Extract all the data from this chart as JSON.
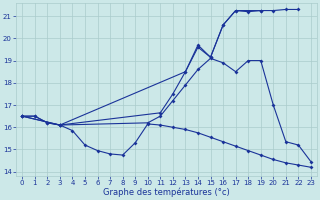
{
  "xlabel": "Graphe des températures (°c)",
  "bg_color": "#cce8e8",
  "grid_color": "#aacccc",
  "line_color": "#1a3399",
  "xlim_min": -0.5,
  "xlim_max": 23.5,
  "ylim_min": 13.8,
  "ylim_max": 21.6,
  "xtick_vals": [
    0,
    1,
    2,
    3,
    4,
    5,
    6,
    7,
    8,
    9,
    10,
    11,
    12,
    13,
    14,
    15,
    16,
    17,
    18,
    19,
    20,
    21,
    22,
    23
  ],
  "ytick_vals": [
    14,
    15,
    16,
    17,
    18,
    19,
    20,
    21
  ],
  "series": [
    {
      "x": [
        0,
        1,
        2,
        3,
        4,
        5,
        6,
        7,
        8,
        9,
        10,
        11,
        12,
        13,
        14,
        15,
        16,
        17,
        18,
        19,
        20,
        21,
        22,
        23
      ],
      "y": [
        16.5,
        16.5,
        16.2,
        16.1,
        15.85,
        15.2,
        14.95,
        14.8,
        14.75,
        15.3,
        16.15,
        16.1,
        16.0,
        15.9,
        15.75,
        15.55,
        15.35,
        15.15,
        14.95,
        14.75,
        14.55,
        14.4,
        14.3,
        14.2
      ]
    },
    {
      "x": [
        0,
        1,
        2,
        3,
        10,
        11,
        12,
        13,
        14,
        15,
        16,
        17,
        18,
        19,
        20,
        21,
        22,
        23
      ],
      "y": [
        16.5,
        16.5,
        16.2,
        16.1,
        16.2,
        16.5,
        17.2,
        17.9,
        18.6,
        19.1,
        18.9,
        18.5,
        19.0,
        19.0,
        17.0,
        15.35,
        15.2,
        14.45
      ]
    },
    {
      "x": [
        0,
        3,
        11,
        12,
        13,
        14,
        15,
        16,
        17,
        18,
        19,
        20,
        21,
        22
      ],
      "y": [
        16.5,
        16.1,
        16.65,
        17.5,
        18.5,
        19.6,
        19.15,
        20.6,
        21.25,
        21.2,
        21.25,
        21.25,
        21.3,
        21.3
      ]
    },
    {
      "x": [
        0,
        3,
        13,
        14,
        15,
        16,
        17,
        19
      ],
      "y": [
        16.5,
        16.1,
        18.5,
        19.7,
        19.15,
        20.6,
        21.25,
        21.25
      ]
    }
  ]
}
